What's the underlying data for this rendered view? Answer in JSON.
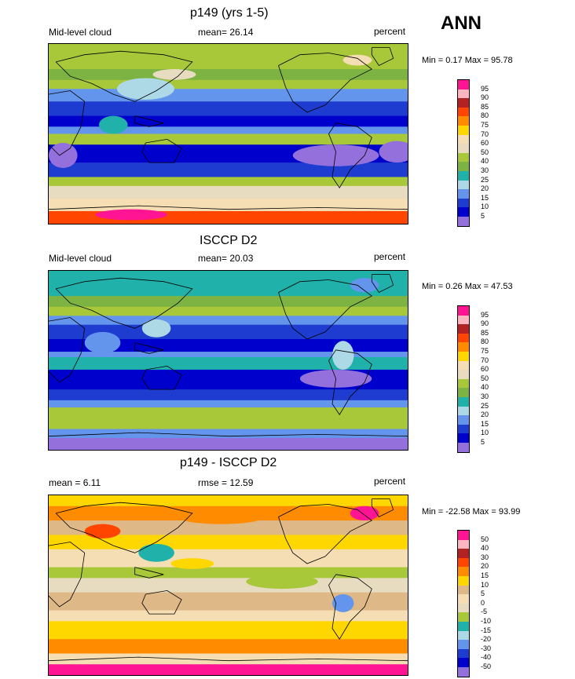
{
  "season": "ANN",
  "panels": [
    {
      "title": "p149 (yrs 1-5)",
      "left_label": "Mid-level cloud",
      "center_label": "mean=  26.14",
      "right_label": "percent",
      "minmax": "Min =   0.17 Max =  95.78",
      "colorbar": {
        "labels": [
          "95",
          "90",
          "85",
          "80",
          "75",
          "70",
          "60",
          "50",
          "40",
          "30",
          "25",
          "20",
          "15",
          "10",
          "5"
        ],
        "colors": [
          "#ff1493",
          "#ffb6c1",
          "#b22222",
          "#ff4500",
          "#ff8c00",
          "#ffd700",
          "#f5deb3",
          "#e8dcc0",
          "#a8c83a",
          "#7cb342",
          "#20b2aa",
          "#add8e6",
          "#6495ed",
          "#1e3ccf",
          "#0000cd",
          "#9370db"
        ]
      },
      "field": "model"
    },
    {
      "title": "ISCCP D2",
      "left_label": "Mid-level cloud",
      "center_label": "mean=  20.03",
      "right_label": "percent",
      "minmax": "Min =   0.26 Max =  47.53",
      "colorbar": {
        "labels": [
          "95",
          "90",
          "85",
          "80",
          "75",
          "70",
          "60",
          "50",
          "40",
          "30",
          "25",
          "20",
          "15",
          "10",
          "5"
        ],
        "colors": [
          "#ff1493",
          "#ffb6c1",
          "#b22222",
          "#ff4500",
          "#ff8c00",
          "#ffd700",
          "#f5deb3",
          "#e8dcc0",
          "#a8c83a",
          "#7cb342",
          "#20b2aa",
          "#add8e6",
          "#6495ed",
          "#1e3ccf",
          "#0000cd",
          "#9370db"
        ]
      },
      "field": "obs"
    },
    {
      "title": "p149 - ISCCP D2",
      "left_label": "mean =   6.11",
      "center_label": "rmse =  12.59",
      "right_label": "percent",
      "minmax": "Min = -22.58 Max =  93.99",
      "colorbar": {
        "labels": [
          "50",
          "40",
          "30",
          "20",
          "15",
          "10",
          "5",
          "0",
          "-5",
          "-10",
          "-15",
          "-20",
          "-30",
          "-40",
          "-50"
        ],
        "colors": [
          "#ff1493",
          "#ffb6c1",
          "#b22222",
          "#ff4500",
          "#ff8c00",
          "#ffd700",
          "#deb887",
          "#f5deb3",
          "#e8dcc0",
          "#a8c83a",
          "#20b2aa",
          "#add8e6",
          "#6495ed",
          "#1e3ccf",
          "#0000cd",
          "#9370db"
        ]
      },
      "field": "diff"
    }
  ]
}
